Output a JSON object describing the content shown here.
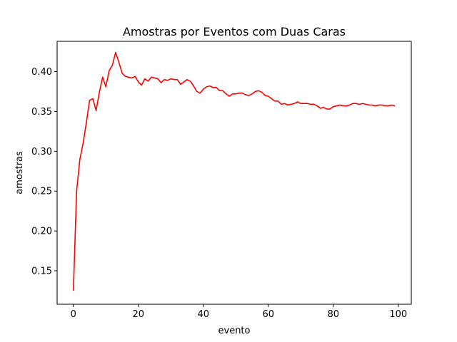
{
  "chart_data": {
    "type": "line",
    "title": "Amostras por Eventos com Duas Caras",
    "xlabel": "evento",
    "ylabel": "amostras",
    "xlim": [
      -5,
      104
    ],
    "ylim": [
      0.108,
      0.438
    ],
    "xticks": [
      0,
      20,
      40,
      60,
      80,
      100
    ],
    "xtick_labels": [
      "0",
      "20",
      "40",
      "60",
      "80",
      "100"
    ],
    "yticks": [
      0.15,
      0.2,
      0.25,
      0.3,
      0.35,
      0.4
    ],
    "ytick_labels": [
      "0.15",
      "0.20",
      "0.25",
      "0.30",
      "0.35",
      "0.40"
    ],
    "grid": false,
    "series": [
      {
        "color": "#ff0000",
        "x": [
          0,
          1,
          2,
          3,
          4,
          5,
          6,
          7,
          8,
          9,
          10,
          11,
          12,
          13,
          14,
          15,
          16,
          17,
          18,
          19,
          20,
          21,
          22,
          23,
          24,
          25,
          26,
          27,
          28,
          29,
          30,
          31,
          32,
          33,
          34,
          35,
          36,
          37,
          38,
          39,
          40,
          41,
          42,
          43,
          44,
          45,
          46,
          47,
          48,
          49,
          50,
          51,
          52,
          53,
          54,
          55,
          56,
          57,
          58,
          59,
          60,
          61,
          62,
          63,
          64,
          65,
          66,
          67,
          68,
          69,
          70,
          71,
          72,
          73,
          74,
          75,
          76,
          77,
          78,
          79,
          80,
          81,
          82,
          83,
          84,
          85,
          86,
          87,
          88,
          89,
          90,
          91,
          92,
          93,
          94,
          95,
          96,
          97,
          98,
          99
        ],
        "y": [
          0.125,
          0.25,
          0.29,
          0.31,
          0.336,
          0.364,
          0.366,
          0.351,
          0.374,
          0.393,
          0.381,
          0.401,
          0.408,
          0.424,
          0.412,
          0.398,
          0.394,
          0.393,
          0.392,
          0.394,
          0.387,
          0.383,
          0.391,
          0.388,
          0.393,
          0.392,
          0.391,
          0.386,
          0.39,
          0.389,
          0.391,
          0.39,
          0.39,
          0.384,
          0.387,
          0.39,
          0.388,
          0.382,
          0.375,
          0.373,
          0.378,
          0.381,
          0.382,
          0.38,
          0.38,
          0.376,
          0.376,
          0.372,
          0.369,
          0.372,
          0.372,
          0.373,
          0.373,
          0.371,
          0.37,
          0.372,
          0.375,
          0.376,
          0.374,
          0.37,
          0.369,
          0.366,
          0.363,
          0.363,
          0.359,
          0.36,
          0.358,
          0.359,
          0.36,
          0.362,
          0.36,
          0.36,
          0.36,
          0.359,
          0.359,
          0.357,
          0.354,
          0.355,
          0.353,
          0.353,
          0.356,
          0.357,
          0.358,
          0.357,
          0.357,
          0.358,
          0.36,
          0.36,
          0.359,
          0.36,
          0.359,
          0.358,
          0.358,
          0.357,
          0.358,
          0.358,
          0.357,
          0.357,
          0.358,
          0.357
        ]
      }
    ]
  }
}
